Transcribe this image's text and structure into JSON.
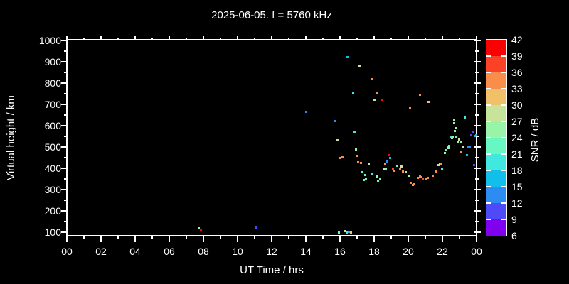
{
  "title": "2025-06-05. f = 5760 kHz",
  "chart_data": {
    "type": "scatter",
    "title": "2025-06-05. f = 5760 kHz",
    "xlabel": "UT Time / hrs",
    "ylabel": "Virtual height / km",
    "colorbar_label": "SNR / dB",
    "background_color": "#000000",
    "axis_color": "#ffffff",
    "grid": "off",
    "legend_position": "right-colorbar",
    "x_range_hours": [
      0,
      24
    ],
    "x_major_step_hours": 2,
    "x_minor_step_hours": 1,
    "x_tick_labels": [
      "00",
      "02",
      "04",
      "06",
      "08",
      "10",
      "12",
      "14",
      "16",
      "18",
      "20",
      "22",
      "00"
    ],
    "y_range_km": [
      80,
      1005
    ],
    "y_major_step_km": 100,
    "y_minor_step_km": 50,
    "y_tick_values": [
      1000,
      900,
      800,
      700,
      600,
      500,
      400,
      300,
      200,
      100
    ],
    "snr_colorbar": {
      "max_dB": 42,
      "min_dB": 6,
      "step_dB": 3,
      "tick_labels": [
        "42",
        "39",
        "36",
        "33",
        "30",
        "27",
        "24",
        "21",
        "18",
        "15",
        "12",
        "9",
        "6"
      ],
      "segment_colors_top_to_bottom": [
        "#fa0000",
        "#fb4126",
        "#fb8d4b",
        "#f0c169",
        "#c8e49a",
        "#98f5a8",
        "#66f7c2",
        "#40e8df",
        "#12bfea",
        "#2d8cf2",
        "#4e4af7",
        "#8000f0"
      ]
    },
    "points_time_height_snr": [
      [
        7.72,
        120,
        25
      ],
      [
        7.85,
        113,
        40
      ],
      [
        11.06,
        123,
        10
      ],
      [
        15.9,
        100,
        22
      ],
      [
        16.24,
        107,
        28
      ],
      [
        16.36,
        100,
        19
      ],
      [
        16.49,
        103,
        16
      ],
      [
        16.61,
        100,
        31
      ],
      [
        16.4,
        923,
        16
      ],
      [
        17.11,
        880,
        28
      ],
      [
        17.82,
        820,
        34
      ],
      [
        16.74,
        753,
        19
      ],
      [
        18.16,
        757,
        34
      ],
      [
        17.99,
        723,
        28
      ],
      [
        18.41,
        723,
        40
      ],
      [
        13.98,
        667,
        13
      ],
      [
        15.65,
        623,
        13
      ],
      [
        16.82,
        573,
        19
      ],
      [
        15.82,
        533,
        28
      ],
      [
        16.9,
        490,
        25
      ],
      [
        16.99,
        460,
        34
      ],
      [
        15.98,
        450,
        34
      ],
      [
        16.11,
        453,
        34
      ],
      [
        17.03,
        430,
        34
      ],
      [
        17.2,
        427,
        34
      ],
      [
        17.65,
        423,
        28
      ],
      [
        18.82,
        463,
        40
      ],
      [
        18.91,
        450,
        16
      ],
      [
        18.74,
        433,
        13
      ],
      [
        18.61,
        423,
        34
      ],
      [
        18.53,
        397,
        28
      ],
      [
        19.07,
        397,
        37
      ],
      [
        17.28,
        383,
        22
      ],
      [
        17.45,
        370,
        22
      ],
      [
        17.86,
        373,
        19
      ],
      [
        17.49,
        350,
        22
      ],
      [
        17.36,
        347,
        22
      ],
      [
        18.16,
        363,
        25
      ],
      [
        18.2,
        343,
        22
      ],
      [
        18.32,
        350,
        22
      ],
      [
        18.66,
        400,
        22
      ],
      [
        19.12,
        390,
        34
      ],
      [
        19.32,
        413,
        22
      ],
      [
        19.57,
        410,
        28
      ],
      [
        19.49,
        397,
        34
      ],
      [
        19.66,
        387,
        34
      ],
      [
        19.82,
        383,
        28
      ],
      [
        19.99,
        367,
        25
      ],
      [
        20.12,
        333,
        34
      ],
      [
        20.32,
        327,
        34
      ],
      [
        20.24,
        323,
        34
      ],
      [
        20.53,
        357,
        34
      ],
      [
        20.66,
        363,
        34
      ],
      [
        20.74,
        360,
        34
      ],
      [
        20.83,
        353,
        37
      ],
      [
        21.03,
        353,
        34
      ],
      [
        21.12,
        357,
        34
      ],
      [
        21.41,
        367,
        34
      ],
      [
        21.62,
        387,
        34
      ],
      [
        21.74,
        417,
        28
      ],
      [
        21.83,
        420,
        28
      ],
      [
        21.91,
        423,
        34
      ],
      [
        21.95,
        400,
        19
      ],
      [
        22.12,
        473,
        25
      ],
      [
        22.2,
        487,
        34
      ],
      [
        22.28,
        503,
        22
      ],
      [
        22.37,
        507,
        22
      ],
      [
        22.54,
        543,
        28
      ],
      [
        22.7,
        577,
        25
      ],
      [
        22.79,
        590,
        25
      ],
      [
        22.66,
        613,
        25
      ],
      [
        22.95,
        537,
        28
      ],
      [
        23.08,
        523,
        25
      ],
      [
        23.58,
        503,
        13
      ],
      [
        23.41,
        463,
        16
      ],
      [
        23.08,
        480,
        34
      ],
      [
        23.16,
        500,
        28
      ],
      [
        23.66,
        557,
        10
      ],
      [
        23.79,
        570,
        10
      ],
      [
        23.87,
        553,
        16
      ],
      [
        23.96,
        557,
        16
      ],
      [
        22.45,
        547,
        19
      ],
      [
        22.79,
        547,
        22
      ],
      [
        22.91,
        527,
        25
      ],
      [
        22.33,
        497,
        25
      ],
      [
        22.16,
        487,
        22
      ],
      [
        23.5,
        500,
        13
      ],
      [
        23.83,
        417,
        10
      ],
      [
        20.66,
        747,
        34
      ],
      [
        21.16,
        713,
        31
      ],
      [
        20.07,
        687,
        34
      ],
      [
        22.66,
        627,
        25
      ],
      [
        23.29,
        640,
        19
      ],
      [
        22.62,
        550,
        25
      ]
    ]
  }
}
